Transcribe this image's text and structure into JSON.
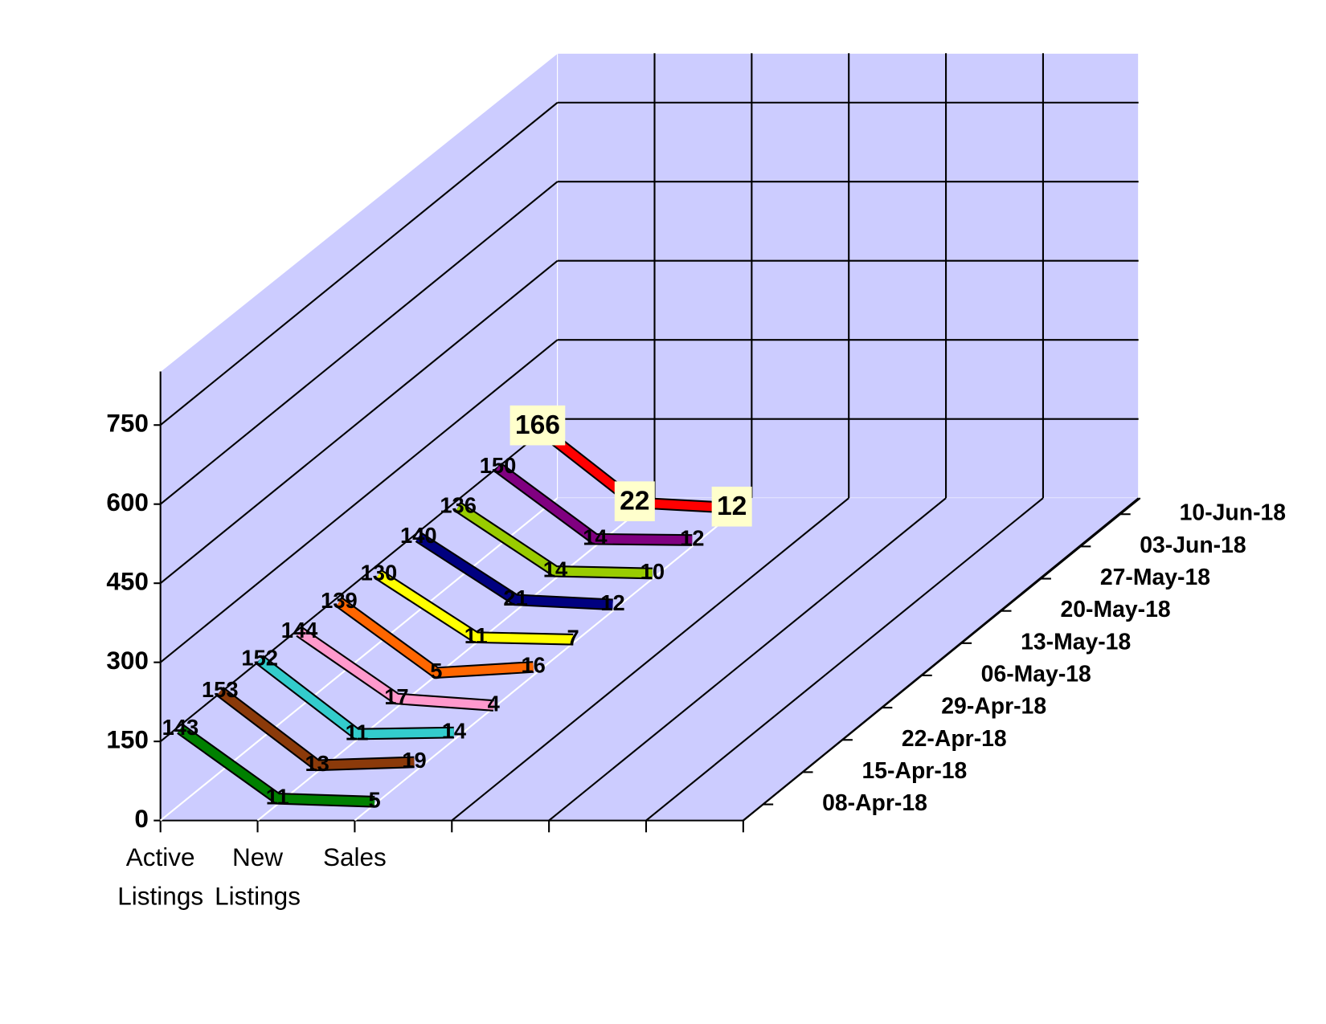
{
  "chart_data": {
    "type": "line3d",
    "categories": [
      "Active Listings",
      "New Listings",
      "Sales",
      null,
      null,
      null,
      null
    ],
    "ylim": [
      0,
      850
    ],
    "yticks": [
      0,
      150,
      300,
      450,
      600,
      750
    ],
    "grid": true,
    "series": [
      {
        "name": "08-Apr-18",
        "color": "#008000",
        "values": [
          143,
          11,
          5,
          null,
          null,
          null,
          null
        ]
      },
      {
        "name": "15-Apr-18",
        "color": "#8b3a0a",
        "values": [
          153,
          13,
          19,
          null,
          null,
          null,
          null
        ]
      },
      {
        "name": "22-Apr-18",
        "color": "#33cccc",
        "values": [
          152,
          11,
          14,
          null,
          null,
          null,
          null
        ]
      },
      {
        "name": "29-Apr-18",
        "color": "#ff99cc",
        "values": [
          144,
          17,
          4,
          null,
          null,
          null,
          null
        ]
      },
      {
        "name": "06-May-18",
        "color": "#ff6600",
        "values": [
          139,
          5,
          16,
          null,
          null,
          null,
          null
        ]
      },
      {
        "name": "13-May-18",
        "color": "#ffff00",
        "values": [
          130,
          11,
          7,
          null,
          null,
          null,
          null
        ]
      },
      {
        "name": "20-May-18",
        "color": "#000080",
        "values": [
          140,
          21,
          12,
          null,
          null,
          null,
          null
        ]
      },
      {
        "name": "27-May-18",
        "color": "#99cc00",
        "values": [
          136,
          14,
          10,
          null,
          null,
          null,
          null
        ]
      },
      {
        "name": "03-Jun-18",
        "color": "#800080",
        "values": [
          150,
          14,
          12,
          null,
          null,
          null,
          null
        ]
      },
      {
        "name": "10-Jun-18",
        "color": "#ff0000",
        "values": [
          166,
          22,
          12,
          null,
          null,
          null,
          null
        ]
      }
    ]
  }
}
